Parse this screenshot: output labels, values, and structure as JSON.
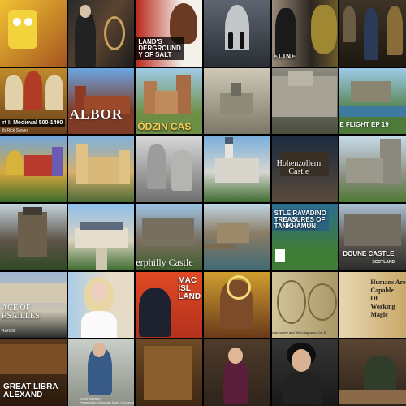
{
  "tiles": [
    {
      "name": "spongebob",
      "bg": "linear-gradient(135deg,#f1c232,#a5551f)",
      "caption": "",
      "subcaption": ""
    },
    {
      "name": "hangman-rope",
      "bg": "linear-gradient(120deg,#2a2a2a,#5a4430,#1c1c1c)",
      "caption": "",
      "subcaption": ""
    },
    {
      "name": "underground-salt",
      "bg": "linear-gradient(90deg,#b9271b,#f4f0ea 70%)",
      "caption": "LAND'S\nDERGROUND\nY OF SALT",
      "subcaption": ""
    },
    {
      "name": "castle-corridor",
      "bg": "linear-gradient(180deg,#5d6570,#2a2f36)",
      "caption": "",
      "subcaption": ""
    },
    {
      "name": "timeline-crown",
      "bg": "linear-gradient(90deg,#9a8b7a,#2c2620 60%,#6b5a2a)",
      "caption": "ELINE",
      "subcaption": ""
    },
    {
      "name": "museum-man",
      "bg": "linear-gradient(180deg,#3d3426,#1d1810)",
      "caption": "",
      "subcaption": ""
    },
    {
      "name": "medieval-painting",
      "bg": "linear-gradient(180deg,#c08a2c,#6a3f1a)",
      "caption": "rt I: Medieval 500-1400",
      "subcaption": "th Rick Steves"
    },
    {
      "name": "malbork",
      "bg": "linear-gradient(180deg,#6aa6e2,#7e3b26 65%)",
      "caption": "ALBOR",
      "subcaption": ""
    },
    {
      "name": "castle-zamek",
      "bg": "linear-gradient(180deg,#9fcbe6,#6f8e45 70%)",
      "caption": "ÓDZIN CAS",
      "subcaption": ""
    },
    {
      "name": "sketch-castle",
      "bg": "linear-gradient(180deg,#cfc8b6,#7c7868)",
      "caption": "",
      "subcaption": ""
    },
    {
      "name": "stone-wall",
      "bg": "linear-gradient(180deg,#8d8a80,#4a4f40)",
      "caption": "",
      "subcaption": ""
    },
    {
      "name": "castle-flight",
      "bg": "linear-gradient(180deg,#9ecbe8,#4e7b3c 70%)",
      "caption": "E FLIGHT EP 19",
      "subcaption": ""
    },
    {
      "name": "pena-palace",
      "bg": "linear-gradient(180deg,#6fa6df,#d7a83c 55%,#3b6b2c)",
      "caption": "",
      "subcaption": ""
    },
    {
      "name": "chateau-towers",
      "bg": "linear-gradient(180deg,#7fb1df,#d5b06a 55%,#4d6a36)",
      "caption": "",
      "subcaption": ""
    },
    {
      "name": "stone-statues",
      "bg": "linear-gradient(180deg,#d8d8d8,#6e6f6e)",
      "caption": "",
      "subcaption": ""
    },
    {
      "name": "neuschwanstein",
      "bg": "linear-gradient(180deg,#79aede,#d6d6cf 55%,#3e6b2f)",
      "caption": "",
      "subcaption": ""
    },
    {
      "name": "hohenzollern",
      "bg": "linear-gradient(180deg,#1b2b40,#5a4a3a)",
      "caption": "Hohenzollern\nCastle",
      "subcaption": ""
    },
    {
      "name": "round-tower",
      "bg": "linear-gradient(180deg,#c6dce9,#8c8f80 60%,#4e7a34)",
      "caption": "",
      "subcaption": ""
    },
    {
      "name": "eltz-castle",
      "bg": "linear-gradient(180deg,#c4d3de,#5e5448 55%,#2f4a25)",
      "caption": "",
      "subcaption": ""
    },
    {
      "name": "chambord",
      "bg": "linear-gradient(180deg,#8fc0ea,#d9d2bf 55%,#3f6d32)",
      "caption": "",
      "subcaption": ""
    },
    {
      "name": "caerphilly",
      "bg": "linear-gradient(180deg,#9cc3e4,#7a6f5e 55%,#3c5f2b)",
      "caption": "erphilly Castle",
      "subcaption": ""
    },
    {
      "name": "eilean-donan",
      "bg": "linear-gradient(180deg,#c1d7e6,#8b7b64 45%,#3f6a75)",
      "caption": "",
      "subcaption": ""
    },
    {
      "name": "tutankhamun",
      "bg": "linear-gradient(180deg,#2a6e8f,#3f7d36 70%)",
      "caption": "STLE RAVADINO\nTREASURES OF\nTANKHAMUN",
      "subcaption": ""
    },
    {
      "name": "doune-castle",
      "bg": "linear-gradient(180deg,#a9c0d3,#5e5a52 55%,#2c2c2c)",
      "caption": "DOUNE CASTLE",
      "subcaption": "SCOTLAND"
    },
    {
      "name": "versailles",
      "bg": "linear-gradient(180deg,#9fb8d2,#c9c2b0 60%,#2a2a2a)",
      "caption": "ACE OF\nRSAILLES",
      "subcaption": "RANCE"
    },
    {
      "name": "blonde-host",
      "bg": "linear-gradient(90deg,#a9cdea,#e5dbc6 60%)",
      "caption": "",
      "subcaption": ""
    },
    {
      "name": "mack-island",
      "bg": "linear-gradient(180deg,#e14a24,#b3311c)",
      "caption": "MAC\nISL\nLAND",
      "subcaption": ""
    },
    {
      "name": "illuminated-saint",
      "bg": "linear-gradient(180deg,#cf9d2f,#6a3a1a)",
      "caption": "",
      "subcaption": ""
    },
    {
      "name": "manuscript-diagrams",
      "bg": "linear-gradient(90deg,#d2c49b,#aa9866)",
      "caption": "",
      "subcaption": "ostronomer and Wild diagrams, Ca. E"
    },
    {
      "name": "book-magic",
      "bg": "linear-gradient(90deg,#e7d7b0,#caa869)",
      "caption": "Humans Are\nCapable\nOf\nWorking\nMagic",
      "subcaption": ""
    },
    {
      "name": "library-hall",
      "bg": "linear-gradient(180deg,#5b3a1d,#2b1a0d)",
      "caption": "GREAT LIBRA\nALEXAND",
      "subcaption": ""
    },
    {
      "name": "conservator",
      "bg": "linear-gradient(180deg,#c8cfc9,#8b8f85)",
      "caption": "",
      "subcaption": "David Ashman\nPreservation Manager Book Conservato"
    },
    {
      "name": "old-books",
      "bg": "linear-gradient(180deg,#6e4a25,#3e2712)",
      "caption": "",
      "subcaption": ""
    },
    {
      "name": "woman-library",
      "bg": "linear-gradient(180deg,#4e3b2b,#2e241b)",
      "caption": "",
      "subcaption": ""
    },
    {
      "name": "woman-writing",
      "bg": "linear-gradient(180deg,#353535,#191919)",
      "caption": "",
      "subcaption": ""
    },
    {
      "name": "bookbinder",
      "bg": "linear-gradient(180deg,#5a4532,#2c2219)",
      "caption": "",
      "subcaption": ""
    }
  ]
}
